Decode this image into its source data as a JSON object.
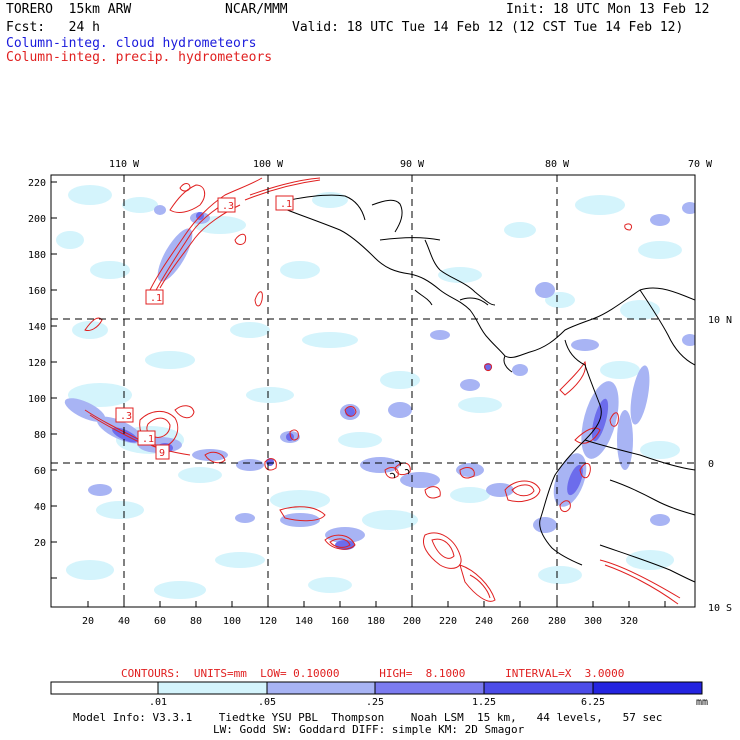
{
  "header": {
    "model": "TORERO  15km ARW",
    "org": "NCAR/MMM",
    "init": "Init: 18 UTC Mon 13 Feb 12",
    "fcst": "Fcst:   24 h",
    "valid": "Valid: 18 UTC Tue 14 Feb 12 (12 CST Tue 14 Feb 12)",
    "legend_cloud": "Column-integ. cloud hydrometeors",
    "legend_precip": "Column-integ. precip. hydrometeors"
  },
  "axes": {
    "lon_labels": [
      "110 W",
      "100 W",
      "90 W",
      "80 W",
      "70 W"
    ],
    "lat_labels": [
      "10 N",
      "0",
      "10 S"
    ],
    "y_ticks": [
      "220",
      "200",
      "180",
      "160",
      "140",
      "120",
      "100",
      "80",
      "60",
      "40",
      "20"
    ],
    "x_ticks": [
      "20",
      "40",
      "60",
      "80",
      "100",
      "120",
      "140",
      "160",
      "180",
      "200",
      "220",
      "240",
      "260",
      "280",
      "300",
      "320"
    ]
  },
  "contour_labels": [
    ".1",
    ".3",
    ".1",
    ".3",
    ".1",
    "9"
  ],
  "contours_info": "CONTOURS:  UNITS=mm  LOW= 0.10000      HIGH=  8.1000      INTERVAL=X  3.0000",
  "colorbar": {
    "labels": [
      ".01",
      ".05",
      ".25",
      "1.25",
      "6.25"
    ],
    "units": "mm",
    "colors": [
      "#ffffff",
      "#d4f4fc",
      "#a8b4f4",
      "#7c7cf0",
      "#4c4ce8",
      "#2424e0"
    ]
  },
  "footer": {
    "line1": "Model Info: V3.3.1    Tiedtke YSU PBL  Thompson    Noah LSM  15 km,   44 levels,   57 sec",
    "line2": "LW: Godd SW: Goddard DIFF: simple KM: 2D Smagor"
  }
}
